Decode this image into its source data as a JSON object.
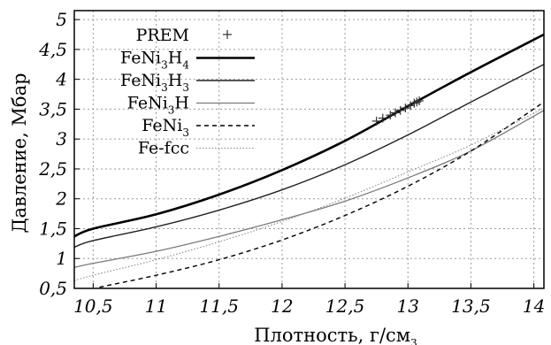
{
  "chart_data": {
    "type": "line",
    "xlabel": "Плотность, г/см",
    "xlabel_sup": "3",
    "ylabel": "Давление, Мбар",
    "xlim": [
      10.35,
      14.08
    ],
    "ylim": [
      0.5,
      5.15
    ],
    "grid": true,
    "legend_position": "top-left",
    "xticks": [
      "10,5",
      "11",
      "11,5",
      "12",
      "12,5",
      "13",
      "13,5",
      "14"
    ],
    "xtick_values": [
      10.5,
      11,
      11.5,
      12,
      12.5,
      13,
      13.5,
      14
    ],
    "yticks": [
      "0,5",
      "1",
      "1,5",
      "2",
      "2,5",
      "3",
      "3,5",
      "4",
      "4,5",
      "5"
    ],
    "ytick_values": [
      0.5,
      1,
      1.5,
      2,
      2.5,
      3,
      3.5,
      4,
      4.5,
      5
    ],
    "series": [
      {
        "name": "FeNi3H4",
        "label_main": "FeNi",
        "label_sub1": "3",
        "label_mid": "H",
        "label_sub2": "4",
        "style": "thick",
        "x": [
          10.35,
          10.5,
          11,
          11.5,
          12,
          12.5,
          13,
          13.5,
          14.08
        ],
        "y": [
          1.37,
          1.5,
          1.74,
          2.07,
          2.48,
          2.97,
          3.55,
          4.12,
          4.75
        ]
      },
      {
        "name": "FeNi3H3",
        "label_main": "FeNi",
        "label_sub1": "3",
        "label_mid": "H",
        "label_sub2": "3",
        "style": "solid",
        "x": [
          10.35,
          10.5,
          11,
          11.5,
          12,
          12.5,
          13,
          13.5,
          14.08
        ],
        "y": [
          1.19,
          1.3,
          1.53,
          1.81,
          2.15,
          2.57,
          3.07,
          3.62,
          4.25
        ]
      },
      {
        "name": "FeNi3H",
        "label_main": "FeNi",
        "label_sub1": "3",
        "label_mid": "H",
        "label_sub2": "",
        "style": "gray",
        "x": [
          10.35,
          10.5,
          11,
          11.5,
          12,
          12.5,
          13,
          13.5,
          14.08
        ],
        "y": [
          0.85,
          0.92,
          1.12,
          1.37,
          1.65,
          1.96,
          2.35,
          2.8,
          3.48
        ]
      },
      {
        "name": "FeNi3",
        "label_main": "FeNi",
        "label_sub1": "3",
        "label_mid": "",
        "label_sub2": "",
        "style": "dashed",
        "x": [
          10.55,
          11,
          11.5,
          12,
          12.5,
          13,
          13.5,
          14.08
        ],
        "y": [
          0.52,
          0.72,
          0.98,
          1.31,
          1.72,
          2.21,
          2.8,
          3.62
        ]
      },
      {
        "name": "Fe-fcc",
        "label_main": "Fe-fcc",
        "label_sub1": "",
        "label_mid": "",
        "label_sub2": "",
        "style": "dotted",
        "x": [
          10.35,
          10.5,
          11,
          11.5,
          12,
          12.5,
          13,
          13.5,
          14.08
        ],
        "y": [
          0.63,
          0.72,
          0.98,
          1.28,
          1.62,
          2.01,
          2.45,
          2.9,
          3.52
        ]
      }
    ],
    "prem": {
      "name": "PREM",
      "x": [
        12.75,
        12.8,
        12.86,
        12.9,
        12.94,
        12.98,
        13.02,
        13.05,
        13.07,
        13.09
      ],
      "y": [
        3.3,
        3.35,
        3.4,
        3.44,
        3.48,
        3.52,
        3.56,
        3.6,
        3.62,
        3.64
      ]
    }
  }
}
